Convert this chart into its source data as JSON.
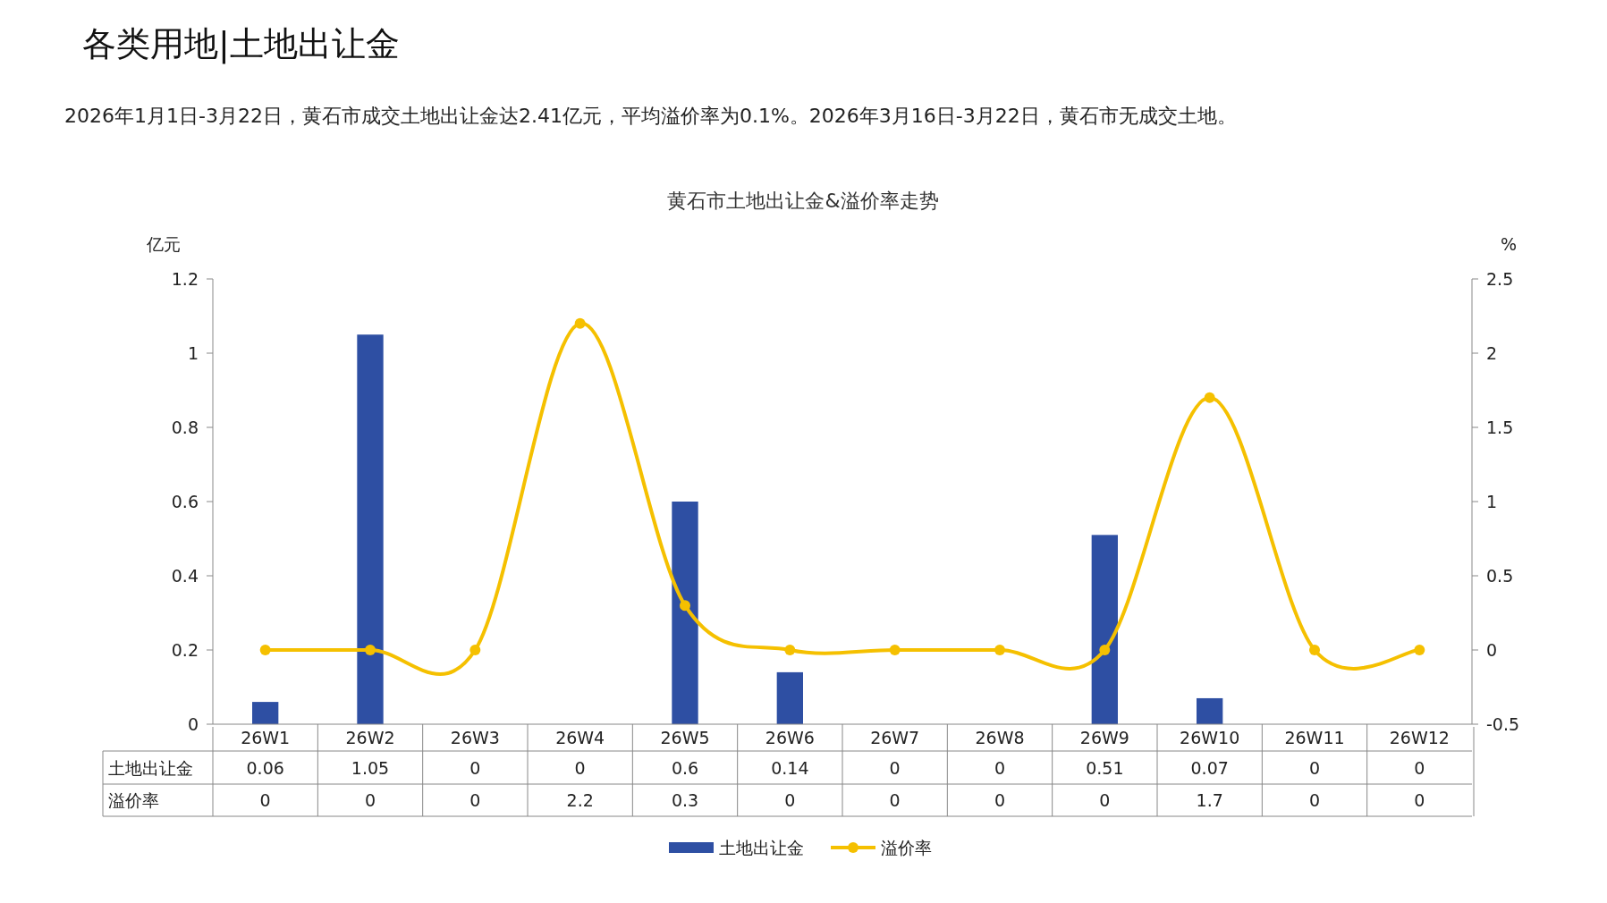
{
  "chart_data": {
    "type": "bar",
    "title": "黄石市土地出让金&溢价率走势",
    "annotations": [
      "各类用地|土地出让金",
      "2026年1月1日-3月22日，黄石市成交土地出让金达2.41亿元，平均溢价率为0.1%。2026年3月16日-3月22日，黄石市无成交土地。"
    ],
    "ylabel": "亿元",
    "y2label": "%",
    "categories": [
      "26W1",
      "26W2",
      "26W3",
      "26W4",
      "26W5",
      "26W6",
      "26W7",
      "26W8",
      "26W9",
      "26W10",
      "26W11",
      "26W12"
    ],
    "series": [
      {
        "name": "土地出让金",
        "color": "#2e4fa3",
        "values": [
          0.06,
          1.05,
          0,
          0,
          0.6,
          0.14,
          0,
          0,
          0.51,
          0.07,
          0,
          0
        ]
      },
      {
        "name": "溢价率",
        "type": "line",
        "axis": "y2",
        "color": "#f5c000",
        "marker": "circle",
        "values": [
          0,
          0,
          0,
          2.2,
          0.3,
          0,
          0,
          0,
          0,
          1.7,
          0,
          0
        ]
      }
    ],
    "ylim": [
      0,
      1.2
    ],
    "yticks": [
      0,
      0.2,
      0.4,
      0.6,
      0.8,
      1,
      1.2
    ],
    "y2lim": [
      -0.5,
      2.5
    ],
    "y2ticks": [
      -0.5,
      0,
      0.5,
      1,
      1.5,
      2,
      2.5
    ],
    "data_labels": true,
    "legend": "bottom",
    "grid": false
  }
}
